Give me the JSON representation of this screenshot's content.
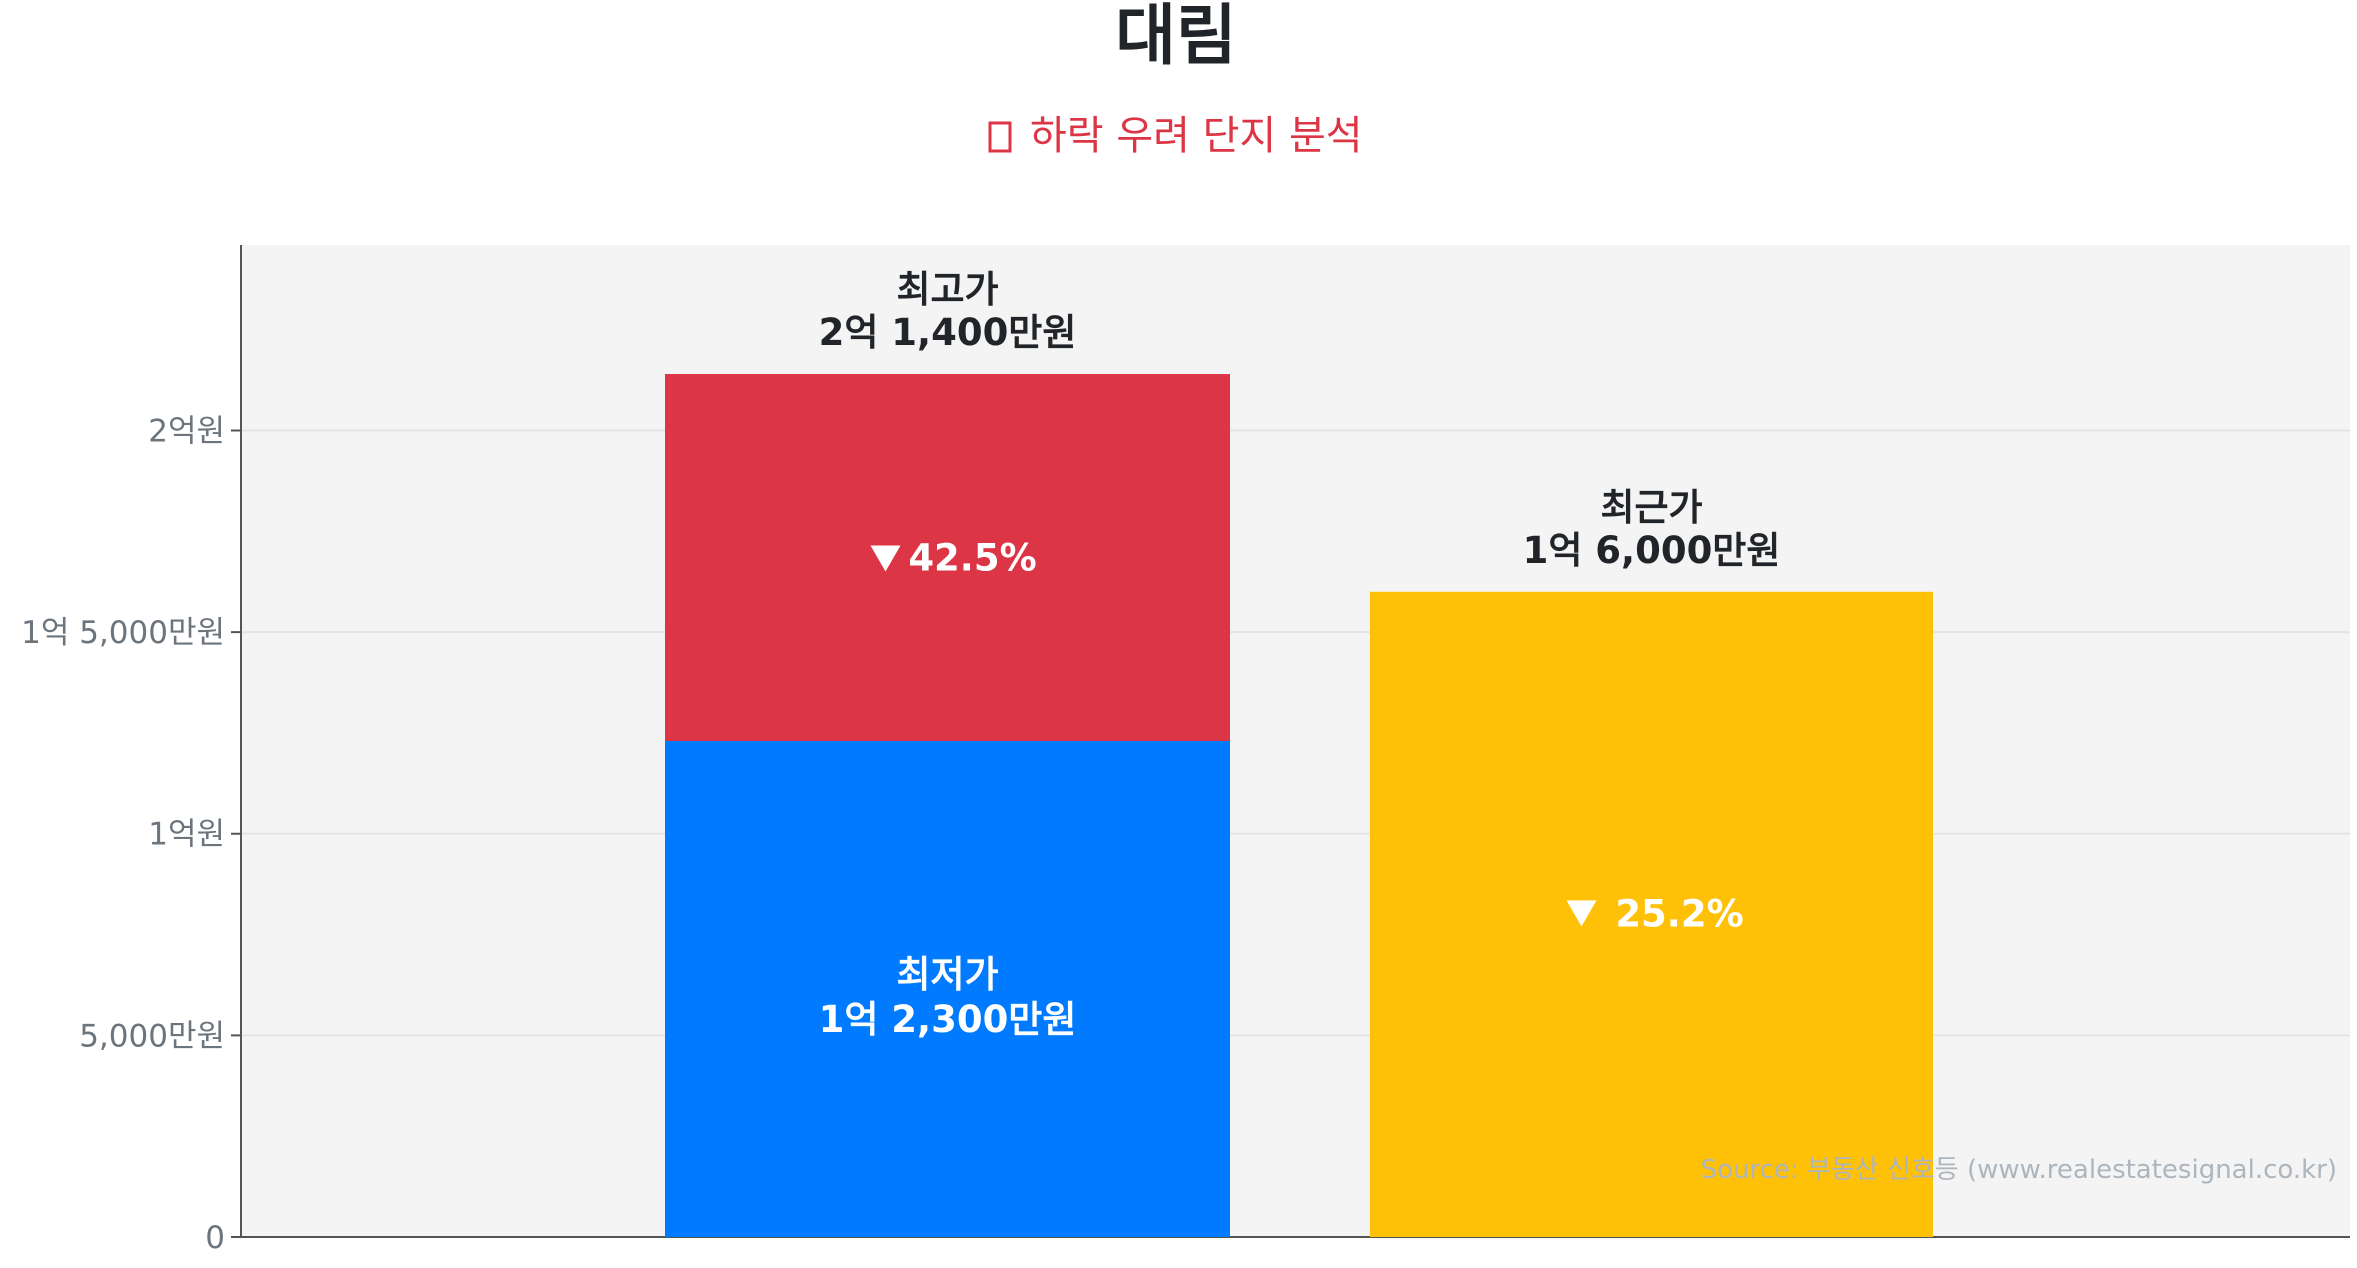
{
  "chart_data": {
    "type": "bar",
    "title": "대림",
    "subtitle": "하락 우려 단지 분석",
    "subtitle_icon": "warning-icon",
    "ylim": [
      0,
      246000000
    ],
    "y_ticks": [
      {
        "value": 0,
        "label": "0"
      },
      {
        "value": 50000000,
        "label": "5,000만원"
      },
      {
        "value": 100000000,
        "label": "1억원"
      },
      {
        "value": 150000000,
        "label": "1억 5,000만원"
      },
      {
        "value": 200000000,
        "label": "2억원"
      }
    ],
    "grid": true,
    "bars": {
      "stacked": {
        "low": {
          "name": "최저가",
          "value": 123000000,
          "value_label": "1억 2,300만원",
          "color": "#007bff"
        },
        "high": {
          "name": "최고가",
          "value": 214000000,
          "value_label": "2억 1,400만원",
          "color": "#dc3545"
        },
        "drop_label": "42.5%"
      },
      "recent": {
        "name": "최근가",
        "value": 160000000,
        "value_label": "1억 6,000만원",
        "color": "#ffc107",
        "drop_label": "25.2%"
      }
    },
    "source": "Source: 부동산 신호등 (www.realestatesignal.co.kr)"
  },
  "colors": {
    "plot_bg": "#f4f4f4",
    "grid": "#e4e4e4",
    "axis": "#555555",
    "subtitle": "#dc3545"
  }
}
